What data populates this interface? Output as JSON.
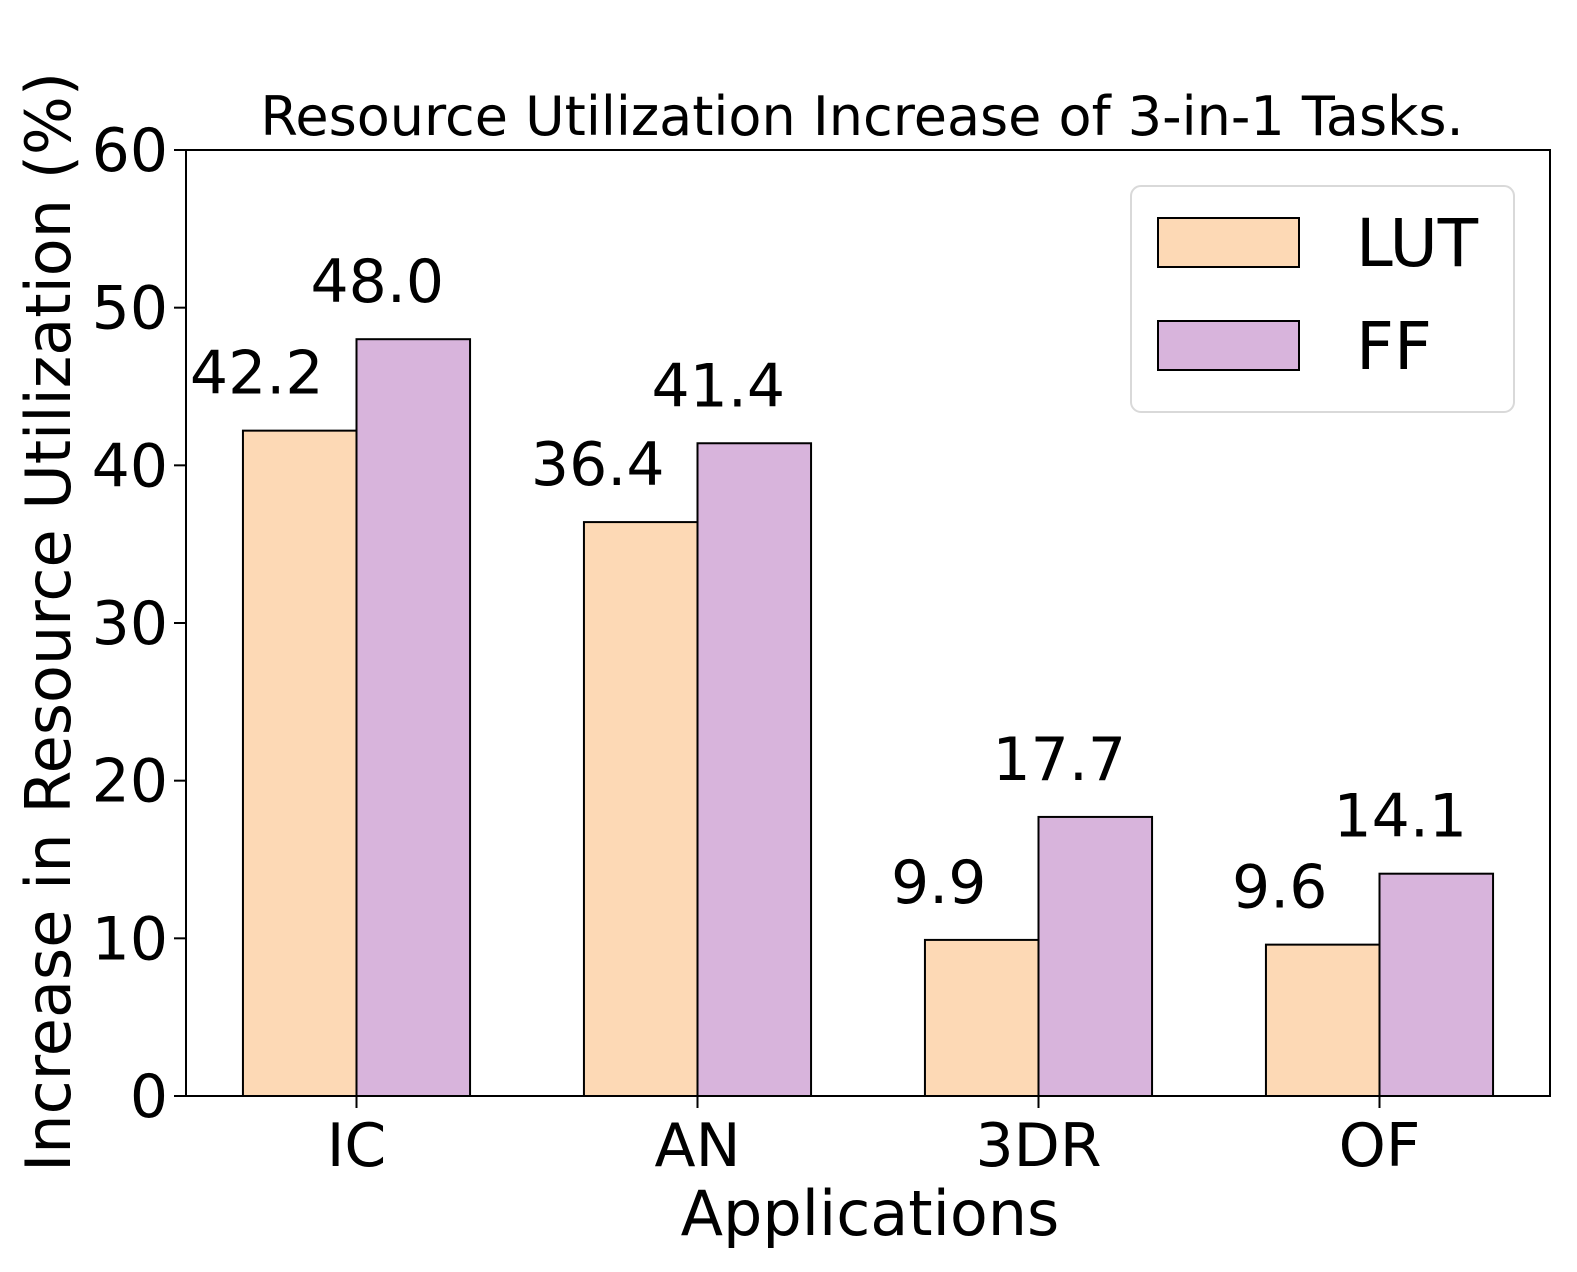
{
  "chart_data": {
    "type": "bar",
    "title": "Resource Utilization Increase of 3-in-1 Tasks.",
    "xlabel": "Applications",
    "ylabel": "Increase in Resource Utilization (%)",
    "categories": [
      "IC",
      "AN",
      "3DR",
      "OF"
    ],
    "series": [
      {
        "name": "LUT",
        "values": [
          42.2,
          36.4,
          9.9,
          9.6
        ],
        "labels": [
          "42.2",
          "36.4",
          "9.9",
          "9.6"
        ],
        "color": "#fdd9b5"
      },
      {
        "name": "FF",
        "values": [
          48.0,
          41.4,
          17.7,
          14.1
        ],
        "labels": [
          "48.0",
          "41.4",
          "17.7",
          "14.1"
        ],
        "color": "#d8b4dc"
      }
    ],
    "ylim": [
      0,
      60
    ],
    "yticks": [
      0,
      10,
      20,
      30,
      40,
      50,
      60
    ],
    "ytick_labels": [
      "0",
      "10",
      "20",
      "30",
      "40",
      "50",
      "60"
    ],
    "grid": false,
    "legend_position": "top-right"
  }
}
